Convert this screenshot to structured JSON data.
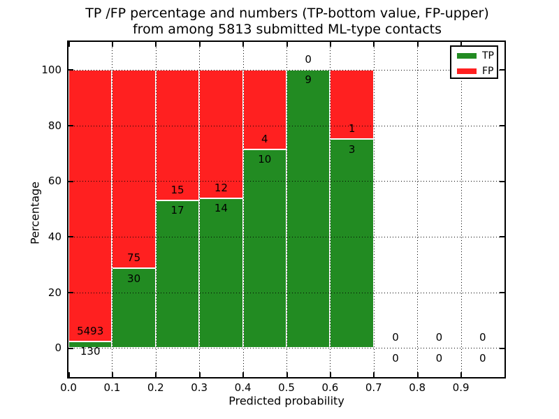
{
  "figure": {
    "title_line1": "TP /FP percentage and numbers (TP-bottom value, FP-upper)",
    "title_line2": "from among 5813 submitted ML-type contacts"
  },
  "axes": {
    "xlabel": "Predicted probability",
    "ylabel": "Percentage"
  },
  "legend": {
    "items": [
      {
        "label": "TP",
        "color": "#228b22"
      },
      {
        "label": "FP",
        "color": "#ff2020"
      }
    ]
  },
  "chart_data": {
    "type": "bar",
    "stacked": true,
    "normalized_to_percent": true,
    "title": "TP /FP percentage and numbers (TP-bottom value, FP-upper) from among 5813 submitted ML-type contacts",
    "xlabel": "Predicted probability",
    "ylabel": "Percentage",
    "total_contacts": 5813,
    "bin_edges": [
      0.0,
      0.1,
      0.2,
      0.3,
      0.4,
      0.5,
      0.6,
      0.7,
      0.8,
      0.9,
      1.0
    ],
    "categories": [
      "0.0-0.1",
      "0.1-0.2",
      "0.2-0.3",
      "0.3-0.4",
      "0.4-0.5",
      "0.5-0.6",
      "0.6-0.7",
      "0.7-0.8",
      "0.8-0.9",
      "0.9-1.0"
    ],
    "series": [
      {
        "name": "TP",
        "color": "#228b22",
        "counts": [
          130,
          30,
          17,
          14,
          10,
          9,
          3,
          0,
          0,
          0
        ]
      },
      {
        "name": "FP",
        "color": "#ff2020",
        "counts": [
          5493,
          75,
          15,
          12,
          4,
          0,
          1,
          0,
          0,
          0
        ]
      }
    ],
    "tp_percent": [
      2.31,
      28.57,
      53.13,
      53.85,
      71.43,
      100.0,
      75.0,
      null,
      null,
      null
    ],
    "xlim": [
      0,
      1.0
    ],
    "ylim": [
      -10.5,
      110
    ],
    "yticks": [
      0,
      20,
      40,
      60,
      80,
      100
    ],
    "ytick_labels": [
      "0",
      "20",
      "40",
      "60",
      "80",
      "100"
    ],
    "xtick_values": [
      0.0,
      0.1,
      0.2,
      0.3,
      0.4,
      0.5,
      0.6,
      0.7,
      0.8,
      0.9
    ],
    "xtick_labels": [
      "0.0",
      "0.1",
      "0.2",
      "0.3",
      "0.4",
      "0.5",
      "0.6",
      "0.7",
      "0.8",
      "0.9"
    ],
    "grid": "dotted",
    "legend_position": "upper right"
  }
}
